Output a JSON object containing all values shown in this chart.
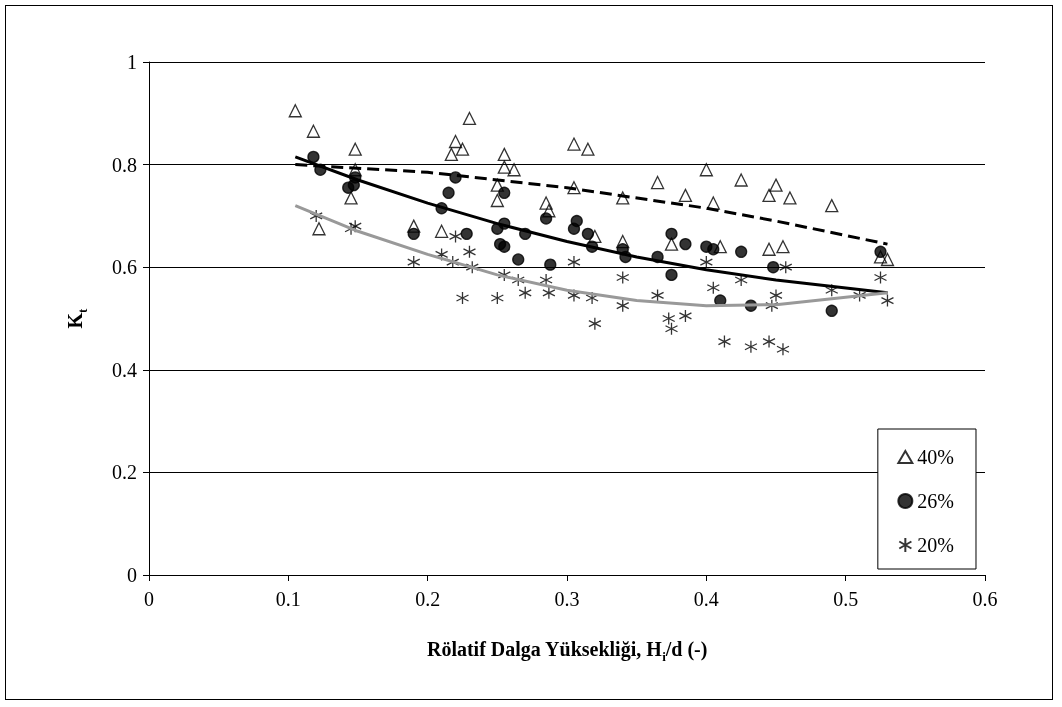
{
  "chart_data": {
    "type": "scatter",
    "xlabel": "Rölatif Dalga Yüksekliği, H$_{i}$/d (-)",
    "ylabel": "K$_{t}$",
    "xlim": [
      0,
      0.6
    ],
    "xticks": [
      0,
      0.1,
      0.2,
      0.3,
      0.4,
      0.5,
      0.6
    ],
    "ylim": [
      0,
      1
    ],
    "yticks": [
      0,
      0.2,
      0.4,
      0.6,
      0.8,
      1
    ],
    "grid": "y",
    "legend": "bottom right",
    "series": [
      {
        "name": "40%",
        "color": "#000000",
        "marker": "triangle",
        "x": [
          0.105,
          0.118,
          0.122,
          0.145,
          0.148,
          0.148,
          0.19,
          0.21,
          0.217,
          0.22,
          0.225,
          0.23,
          0.25,
          0.25,
          0.255,
          0.255,
          0.262,
          0.285,
          0.287,
          0.305,
          0.305,
          0.315,
          0.32,
          0.34,
          0.34,
          0.365,
          0.375,
          0.385,
          0.4,
          0.405,
          0.41,
          0.425,
          0.445,
          0.445,
          0.45,
          0.455,
          0.46,
          0.49,
          0.525,
          0.53
        ],
        "values": [
          0.905,
          0.865,
          0.675,
          0.735,
          0.83,
          0.79,
          0.68,
          0.67,
          0.82,
          0.845,
          0.83,
          0.89,
          0.73,
          0.76,
          0.82,
          0.795,
          0.79,
          0.725,
          0.71,
          0.84,
          0.755,
          0.83,
          0.66,
          0.735,
          0.65,
          0.765,
          0.645,
          0.74,
          0.79,
          0.725,
          0.64,
          0.77,
          0.74,
          0.635,
          0.76,
          0.64,
          0.735,
          0.72,
          0.62,
          0.615
        ]
      },
      {
        "name": "26%",
        "color": "#000000",
        "marker": "circle",
        "x": [
          0.118,
          0.123,
          0.143,
          0.147,
          0.148,
          0.19,
          0.21,
          0.215,
          0.22,
          0.228,
          0.25,
          0.252,
          0.255,
          0.255,
          0.255,
          0.265,
          0.27,
          0.285,
          0.288,
          0.305,
          0.307,
          0.315,
          0.318,
          0.34,
          0.342,
          0.365,
          0.375,
          0.375,
          0.385,
          0.4,
          0.405,
          0.41,
          0.425,
          0.432,
          0.448,
          0.49,
          0.525
        ],
        "values": [
          0.815,
          0.79,
          0.755,
          0.76,
          0.775,
          0.665,
          0.715,
          0.745,
          0.775,
          0.665,
          0.675,
          0.645,
          0.64,
          0.745,
          0.685,
          0.615,
          0.665,
          0.695,
          0.605,
          0.675,
          0.69,
          0.665,
          0.64,
          0.635,
          0.62,
          0.62,
          0.665,
          0.585,
          0.645,
          0.64,
          0.635,
          0.535,
          0.63,
          0.525,
          0.6,
          0.515,
          0.63
        ]
      },
      {
        "name": "20%",
        "color": "#000000",
        "marker": "cross",
        "x": [
          0.12,
          0.145,
          0.148,
          0.19,
          0.21,
          0.218,
          0.22,
          0.225,
          0.23,
          0.232,
          0.25,
          0.255,
          0.265,
          0.27,
          0.285,
          0.287,
          0.305,
          0.305,
          0.318,
          0.32,
          0.34,
          0.34,
          0.365,
          0.373,
          0.375,
          0.385,
          0.4,
          0.405,
          0.413,
          0.425,
          0.432,
          0.445,
          0.447,
          0.45,
          0.455,
          0.457,
          0.49,
          0.51,
          0.525,
          0.53
        ],
        "values": [
          0.7,
          0.675,
          0.68,
          0.61,
          0.625,
          0.61,
          0.66,
          0.54,
          0.63,
          0.6,
          0.54,
          0.585,
          0.575,
          0.55,
          0.575,
          0.55,
          0.545,
          0.61,
          0.54,
          0.49,
          0.58,
          0.525,
          0.545,
          0.5,
          0.48,
          0.505,
          0.61,
          0.56,
          0.455,
          0.575,
          0.445,
          0.455,
          0.525,
          0.545,
          0.44,
          0.6,
          0.555,
          0.545,
          0.58,
          0.535
        ]
      },
      {
        "type": "line",
        "color": "#000000",
        "marker": "none",
        "line_style": "dashed",
        "x": [
          0.105,
          0.2,
          0.3,
          0.4,
          0.45,
          0.53
        ],
        "values": [
          0.8,
          0.785,
          0.755,
          0.715,
          0.69,
          0.645
        ]
      },
      {
        "type": "line",
        "color": "#000000",
        "marker": "none",
        "line_style": "solid",
        "x": [
          0.105,
          0.15,
          0.2,
          0.25,
          0.3,
          0.35,
          0.4,
          0.45,
          0.53
        ],
        "values": [
          0.815,
          0.77,
          0.725,
          0.685,
          0.65,
          0.62,
          0.595,
          0.575,
          0.55
        ]
      },
      {
        "type": "line",
        "color": "#999999",
        "marker": "none",
        "line_style": "solid",
        "x": [
          0.105,
          0.15,
          0.2,
          0.25,
          0.3,
          0.35,
          0.4,
          0.45,
          0.53
        ],
        "values": [
          0.72,
          0.67,
          0.625,
          0.585,
          0.555,
          0.535,
          0.525,
          0.527,
          0.55
        ]
      }
    ]
  }
}
